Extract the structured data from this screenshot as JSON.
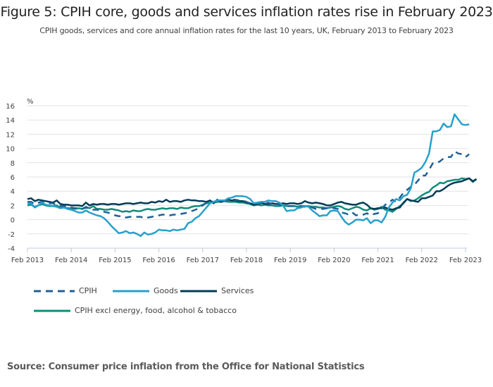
{
  "header": {
    "title": "Figure 5: CPIH core, goods and services inflation rates rise in February 2023",
    "subtitle": "CPIH goods, services and core annual inflation rates for the last 10 years, UK, February 2013 to February 2023"
  },
  "source": "Source: Consumer price inflation from the Office for National Statistics",
  "chart_data": {
    "type": "line",
    "title": "Figure 5: CPIH core, goods and services inflation rates rise in February 2023",
    "subtitle": "CPIH goods, services and core annual inflation rates for the last 10 years, UK, February 2013 to February 2023",
    "xlabel": "",
    "ylabel": "%",
    "ylim": [
      -4,
      16
    ],
    "yticks": [
      "16",
      "14",
      "12",
      "10",
      "8",
      "6",
      "4",
      "2",
      "0",
      "-2",
      "-4"
    ],
    "ytick_values": [
      16,
      14,
      12,
      10,
      8,
      6,
      4,
      2,
      0,
      -2,
      -4
    ],
    "xticks": [
      "Feb 2013",
      "Feb 2014",
      "Feb 2015",
      "Feb 2016",
      "Feb 2017",
      "Feb 2018",
      "Feb 2019",
      "Feb 2020",
      "Feb 2021",
      "Feb 2022",
      "Feb 2023"
    ],
    "x_start": "Feb 2013",
    "x_end": "Feb 2023",
    "frequency": "monthly",
    "grid": true,
    "legend_position": "bottom",
    "series": [
      {
        "name": "CPIH",
        "color": "#206095",
        "style": "dashed",
        "values": [
          2.5,
          2.5,
          2.2,
          2.4,
          2.5,
          2.4,
          2.3,
          2.3,
          2.0,
          1.9,
          1.9,
          1.8,
          1.7,
          1.6,
          1.6,
          1.5,
          1.7,
          1.5,
          1.4,
          1.4,
          1.3,
          1.1,
          1.0,
          0.8,
          0.6,
          0.5,
          0.5,
          0.3,
          0.4,
          0.4,
          0.4,
          0.4,
          0.2,
          0.3,
          0.4,
          0.5,
          0.6,
          0.7,
          0.7,
          0.6,
          0.7,
          0.7,
          0.8,
          0.9,
          1.0,
          1.2,
          1.4,
          1.6,
          2.0,
          2.4,
          2.6,
          2.5,
          2.7,
          2.6,
          2.6,
          2.8,
          2.8,
          2.8,
          2.7,
          2.7,
          2.5,
          2.3,
          2.3,
          2.3,
          2.2,
          2.2,
          2.4,
          2.2,
          2.2,
          2.1,
          2.1,
          1.9,
          1.9,
          1.9,
          1.9,
          1.9,
          1.8,
          1.8,
          1.7,
          1.5,
          1.5,
          1.5,
          1.6,
          1.7,
          1.6,
          1.5,
          1.0,
          0.9,
          0.7,
          1.0,
          0.6,
          0.7,
          0.7,
          0.9,
          0.6,
          0.8,
          0.9,
          1.5,
          2.1,
          2.4,
          2.8,
          2.5,
          3.1,
          3.8,
          4.2,
          4.6,
          4.9,
          5.5,
          6.2,
          6.2,
          7.0,
          7.9,
          7.9,
          8.2,
          8.6,
          8.8,
          8.8,
          9.6,
          9.3,
          9.2,
          8.8,
          9.2
        ],
        "notes": "approximate monthly values read from chart"
      },
      {
        "name": "Goods",
        "color": "#27a0cc",
        "style": "solid",
        "values": [
          2.2,
          2.3,
          1.7,
          2.0,
          2.4,
          2.1,
          2.0,
          1.9,
          1.8,
          1.6,
          1.7,
          1.5,
          1.4,
          1.2,
          1.0,
          1.0,
          1.3,
          1.0,
          0.8,
          0.6,
          0.5,
          0.2,
          -0.3,
          -0.9,
          -1.4,
          -1.9,
          -1.8,
          -1.6,
          -1.9,
          -1.8,
          -2.0,
          -2.3,
          -1.8,
          -2.1,
          -2.0,
          -1.8,
          -1.4,
          -1.5,
          -1.5,
          -1.6,
          -1.4,
          -1.5,
          -1.4,
          -1.3,
          -0.5,
          -0.3,
          0.2,
          0.5,
          1.1,
          1.7,
          2.3,
          2.5,
          2.7,
          2.7,
          2.7,
          3.0,
          3.1,
          3.3,
          3.3,
          3.3,
          3.2,
          2.9,
          2.3,
          2.4,
          2.5,
          2.5,
          2.7,
          2.6,
          2.6,
          2.4,
          2.0,
          1.2,
          1.3,
          1.3,
          1.6,
          1.7,
          1.9,
          1.8,
          1.3,
          0.9,
          0.5,
          0.6,
          0.6,
          1.2,
          1.3,
          1.2,
          0.4,
          -0.3,
          -0.7,
          -0.4,
          0.0,
          0.0,
          -0.1,
          0.2,
          -0.5,
          -0.1,
          -0.1,
          -0.4,
          0.4,
          1.7,
          2.4,
          2.9,
          2.7,
          3.3,
          3.5,
          4.4,
          6.6,
          6.9,
          7.3,
          8.1,
          9.3,
          12.4,
          12.4,
          12.6,
          13.5,
          13.0,
          13.1,
          14.8,
          14.1,
          13.4,
          13.3,
          13.4
        ],
        "notes": "approximate monthly values read from chart"
      },
      {
        "name": "Services",
        "color": "#003c57",
        "style": "solid",
        "values": [
          2.9,
          3.0,
          2.6,
          2.8,
          2.7,
          2.6,
          2.5,
          2.4,
          2.7,
          2.2,
          2.1,
          2.1,
          2.0,
          2.0,
          2.0,
          1.9,
          2.4,
          2.0,
          2.2,
          2.1,
          2.2,
          2.2,
          2.1,
          2.2,
          2.2,
          2.1,
          2.2,
          2.3,
          2.3,
          2.2,
          2.3,
          2.4,
          2.3,
          2.3,
          2.5,
          2.4,
          2.6,
          2.5,
          2.8,
          2.5,
          2.6,
          2.6,
          2.5,
          2.7,
          2.8,
          2.7,
          2.7,
          2.6,
          2.6,
          2.5,
          2.7,
          2.3,
          2.8,
          2.5,
          2.6,
          2.8,
          2.7,
          2.7,
          2.6,
          2.6,
          2.4,
          2.3,
          2.1,
          2.2,
          2.4,
          2.2,
          2.2,
          2.3,
          2.2,
          2.2,
          2.3,
          2.2,
          2.3,
          2.3,
          2.2,
          2.3,
          2.6,
          2.4,
          2.3,
          2.4,
          2.3,
          2.2,
          2.0,
          2.0,
          2.2,
          2.4,
          2.5,
          2.3,
          2.2,
          2.1,
          2.1,
          2.3,
          2.4,
          2.1,
          1.6,
          1.5,
          1.6,
          1.6,
          1.7,
          1.5,
          1.4,
          1.6,
          1.7,
          2.4,
          2.9,
          2.7,
          2.6,
          2.5,
          3.0,
          3.0,
          3.2,
          3.4,
          4.0,
          4.0,
          4.3,
          4.7,
          5.0,
          5.2,
          5.3,
          5.4,
          5.6,
          5.8,
          5.4,
          5.7
        ],
        "notes": "approximate monthly values read from chart"
      },
      {
        "name": "CPIH excl energy, food, alcohol & tobacco",
        "color": "#118c7b",
        "style": "solid",
        "values": [
          2.0,
          2.1,
          1.8,
          2.0,
          2.2,
          2.0,
          1.9,
          1.9,
          2.0,
          1.7,
          1.7,
          1.6,
          1.6,
          1.5,
          1.6,
          1.5,
          1.8,
          1.6,
          1.9,
          1.5,
          1.5,
          1.4,
          1.4,
          1.5,
          1.4,
          1.3,
          1.1,
          1.2,
          1.1,
          1.3,
          1.2,
          1.2,
          1.4,
          1.5,
          1.4,
          1.4,
          1.5,
          1.6,
          1.5,
          1.6,
          1.6,
          1.5,
          1.7,
          1.6,
          1.6,
          1.8,
          1.9,
          1.9,
          2.1,
          2.3,
          2.4,
          2.4,
          2.5,
          2.5,
          2.6,
          2.5,
          2.5,
          2.5,
          2.4,
          2.4,
          2.3,
          2.2,
          2.0,
          2.1,
          2.0,
          2.1,
          2.0,
          2.0,
          1.9,
          1.9,
          2.0,
          1.9,
          1.9,
          1.9,
          1.8,
          1.9,
          1.9,
          1.9,
          1.8,
          1.8,
          1.7,
          1.7,
          1.6,
          1.7,
          1.8,
          1.9,
          1.8,
          1.5,
          1.4,
          1.6,
          1.8,
          1.7,
          1.4,
          1.3,
          1.6,
          1.4,
          1.5,
          1.8,
          1.4,
          1.3,
          1.1,
          1.5,
          1.9,
          2.3,
          2.9,
          2.6,
          2.7,
          3.0,
          3.4,
          3.7,
          3.9,
          4.5,
          4.8,
          5.2,
          5.1,
          5.4,
          5.5,
          5.6,
          5.6,
          5.8,
          5.7,
          5.8,
          5.3,
          5.7
        ],
        "notes": "approximate monthly values read from chart"
      }
    ]
  },
  "legend": {
    "items": [
      {
        "label": "CPIH"
      },
      {
        "label": "Goods"
      },
      {
        "label": "Services"
      },
      {
        "label": "CPIH excl energy, food, alcohol & tobacco"
      }
    ]
  }
}
